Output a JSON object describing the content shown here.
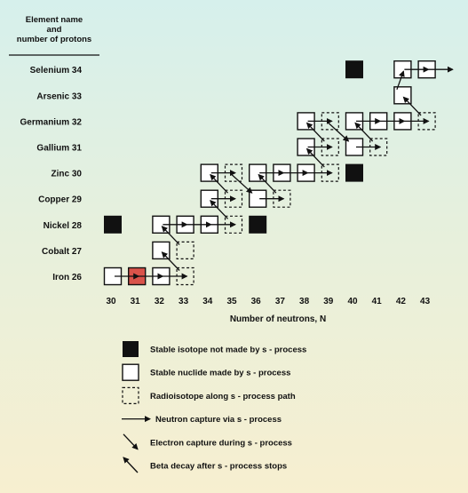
{
  "header": {
    "lines": [
      "Element name",
      "and",
      "number of protons"
    ]
  },
  "elements": [
    {
      "label": "Selenium 34",
      "z": 34
    },
    {
      "label": "Arsenic 33",
      "z": 33
    },
    {
      "label": "Germanium 32",
      "z": 32
    },
    {
      "label": "Gallium 31",
      "z": 31
    },
    {
      "label": "Zinc 30",
      "z": 30
    },
    {
      "label": "Copper 29",
      "z": 29
    },
    {
      "label": "Nickel 28",
      "z": 28
    },
    {
      "label": "Cobalt 27",
      "z": 27
    },
    {
      "label": "Iron 26",
      "z": 26
    }
  ],
  "x_axis": {
    "ticks": [
      "30",
      "31",
      "32",
      "33",
      "34",
      "35",
      "36",
      "37",
      "38",
      "39",
      "40",
      "41",
      "42",
      "43"
    ],
    "label": "Number of neutrons, N"
  },
  "nuclides": [
    {
      "z": 26,
      "n": 30,
      "type": "stable_s"
    },
    {
      "z": 26,
      "n": 31,
      "type": "seed"
    },
    {
      "z": 26,
      "n": 32,
      "type": "stable_s"
    },
    {
      "z": 26,
      "n": 33,
      "type": "radio"
    },
    {
      "z": 27,
      "n": 32,
      "type": "stable_s"
    },
    {
      "z": 27,
      "n": 33,
      "type": "radio"
    },
    {
      "z": 28,
      "n": 30,
      "type": "stable_not_s"
    },
    {
      "z": 28,
      "n": 32,
      "type": "stable_s"
    },
    {
      "z": 28,
      "n": 33,
      "type": "stable_s"
    },
    {
      "z": 28,
      "n": 34,
      "type": "stable_s"
    },
    {
      "z": 28,
      "n": 35,
      "type": "radio"
    },
    {
      "z": 28,
      "n": 36,
      "type": "stable_not_s"
    },
    {
      "z": 29,
      "n": 34,
      "type": "stable_s"
    },
    {
      "z": 29,
      "n": 35,
      "type": "radio"
    },
    {
      "z": 29,
      "n": 36,
      "type": "stable_s"
    },
    {
      "z": 29,
      "n": 37,
      "type": "radio"
    },
    {
      "z": 30,
      "n": 34,
      "type": "stable_s"
    },
    {
      "z": 30,
      "n": 35,
      "type": "radio"
    },
    {
      "z": 30,
      "n": 36,
      "type": "stable_s"
    },
    {
      "z": 30,
      "n": 37,
      "type": "stable_s"
    },
    {
      "z": 30,
      "n": 38,
      "type": "stable_s"
    },
    {
      "z": 30,
      "n": 39,
      "type": "radio"
    },
    {
      "z": 30,
      "n": 40,
      "type": "stable_not_s"
    },
    {
      "z": 31,
      "n": 38,
      "type": "stable_s"
    },
    {
      "z": 31,
      "n": 39,
      "type": "radio"
    },
    {
      "z": 31,
      "n": 40,
      "type": "stable_s"
    },
    {
      "z": 31,
      "n": 41,
      "type": "radio"
    },
    {
      "z": 32,
      "n": 38,
      "type": "stable_s"
    },
    {
      "z": 32,
      "n": 39,
      "type": "radio"
    },
    {
      "z": 32,
      "n": 40,
      "type": "stable_s"
    },
    {
      "z": 32,
      "n": 41,
      "type": "stable_s"
    },
    {
      "z": 32,
      "n": 42,
      "type": "stable_s"
    },
    {
      "z": 32,
      "n": 43,
      "type": "radio"
    },
    {
      "z": 33,
      "n": 42,
      "type": "stable_s"
    },
    {
      "z": 34,
      "n": 40,
      "type": "stable_not_s"
    },
    {
      "z": 34,
      "n": 42,
      "type": "stable_s"
    },
    {
      "z": 34,
      "n": 43,
      "type": "stable_s"
    }
  ],
  "neutron_captures": [
    {
      "z": 26,
      "from_n": 30,
      "to_n": 31
    },
    {
      "z": 26,
      "from_n": 31,
      "to_n": 32
    },
    {
      "z": 26,
      "from_n": 32,
      "to_n": 33
    },
    {
      "z": 28,
      "from_n": 32,
      "to_n": 33
    },
    {
      "z": 28,
      "from_n": 33,
      "to_n": 34
    },
    {
      "z": 28,
      "from_n": 34,
      "to_n": 35
    },
    {
      "z": 29,
      "from_n": 34,
      "to_n": 35
    },
    {
      "z": 29,
      "from_n": 36,
      "to_n": 37
    },
    {
      "z": 30,
      "from_n": 34,
      "to_n": 35
    },
    {
      "z": 30,
      "from_n": 36,
      "to_n": 37
    },
    {
      "z": 30,
      "from_n": 37,
      "to_n": 38
    },
    {
      "z": 30,
      "from_n": 38,
      "to_n": 39
    },
    {
      "z": 31,
      "from_n": 38,
      "to_n": 39
    },
    {
      "z": 31,
      "from_n": 40,
      "to_n": 41
    },
    {
      "z": 32,
      "from_n": 38,
      "to_n": 39
    },
    {
      "z": 32,
      "from_n": 40,
      "to_n": 41
    },
    {
      "z": 32,
      "from_n": 41,
      "to_n": 42
    },
    {
      "z": 32,
      "from_n": 42,
      "to_n": 43
    },
    {
      "z": 34,
      "from_n": 42,
      "to_n": 43
    },
    {
      "z": 34,
      "from_n": 43,
      "to_n": 44
    }
  ],
  "beta_decays": [
    {
      "from_z": 26,
      "from_n": 33,
      "to_z": 27,
      "to_n": 32
    },
    {
      "from_z": 27,
      "from_n": 33,
      "to_z": 28,
      "to_n": 32
    },
    {
      "from_z": 28,
      "from_n": 35,
      "to_z": 29,
      "to_n": 34
    },
    {
      "from_z": 29,
      "from_n": 35,
      "to_z": 30,
      "to_n": 34
    },
    {
      "from_z": 29,
      "from_n": 37,
      "to_z": 30,
      "to_n": 36
    },
    {
      "from_z": 30,
      "from_n": 39,
      "to_z": 31,
      "to_n": 38
    },
    {
      "from_z": 31,
      "from_n": 39,
      "to_z": 32,
      "to_n": 38
    },
    {
      "from_z": 31,
      "from_n": 41,
      "to_z": 32,
      "to_n": 40
    },
    {
      "from_z": 32,
      "from_n": 43,
      "to_z": 33,
      "to_n": 42
    },
    {
      "from_z": 33,
      "from_n": 42,
      "to_z": 34,
      "to_n": 42
    }
  ],
  "electron_captures": [
    {
      "from_z": 30,
      "from_n": 35,
      "to_z": 29,
      "to_n": 36
    },
    {
      "from_z": 32,
      "from_n": 39,
      "to_z": 31,
      "to_n": 40
    }
  ],
  "legend": [
    {
      "kind": "stable_not_s",
      "text": "Stable isotope not made by  s - process"
    },
    {
      "kind": "stable_s",
      "text": "Stable nuclide made by  s - process"
    },
    {
      "kind": "radio",
      "text": "Radioisotope along  s - process path"
    },
    {
      "kind": "neutron_capture",
      "text": "Neutron capture via  s - process"
    },
    {
      "kind": "electron_capture",
      "text": "Electron capture during  s - process"
    },
    {
      "kind": "beta_decay",
      "text": "Beta decay after  s - process stops"
    }
  ],
  "colors": {
    "stable_not_s": "#111111",
    "seed": "#d9534a",
    "box_stroke": "#111111",
    "box_fill": "#ffffff"
  }
}
